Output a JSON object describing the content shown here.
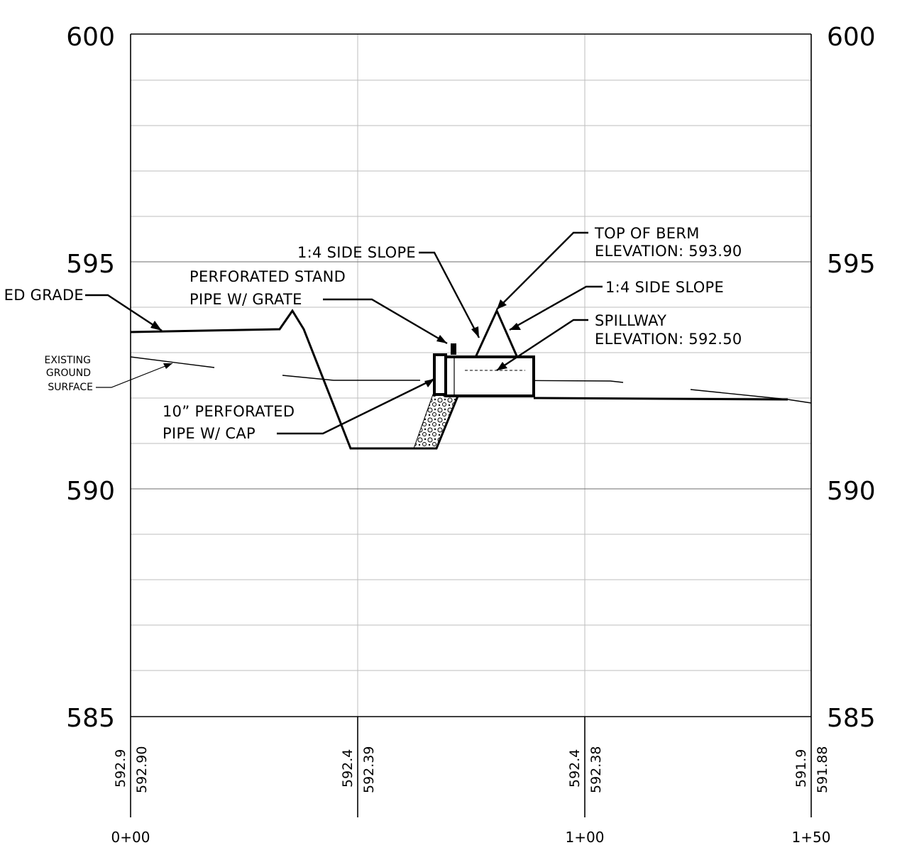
{
  "elevation_labels": {
    "left": [
      "600",
      "595",
      "590",
      "585"
    ],
    "right": [
      "600",
      "595",
      "590",
      "585"
    ]
  },
  "station_labels": [
    "0+00",
    "1+00",
    "1+50"
  ],
  "profile_values": [
    {
      "existing": "592.9",
      "proposed": "592.90"
    },
    {
      "existing": "592.4",
      "proposed": "592.39"
    },
    {
      "existing": "592.4",
      "proposed": "592.38"
    },
    {
      "existing": "591.9",
      "proposed": "591.88"
    }
  ],
  "callouts": {
    "proposed_grade": "ED GRADE",
    "existing_ground": [
      "EXISTING",
      "GROUND",
      "SURFACE"
    ],
    "side_slope_left": "1:4 SIDE SLOPE",
    "stand_pipe": [
      "PERFORATED STAND",
      "PIPE W/ GRATE"
    ],
    "perforated_pipe": [
      "10” PERFORATED",
      "PIPE W/ CAP"
    ],
    "top_of_berm": [
      "TOP OF BERM",
      "ELEVATION: 593.90"
    ],
    "side_slope_right": "1:4 SIDE SLOPE",
    "spillway": [
      "SPILLWAY",
      "ELEVATION: 592.50"
    ]
  }
}
